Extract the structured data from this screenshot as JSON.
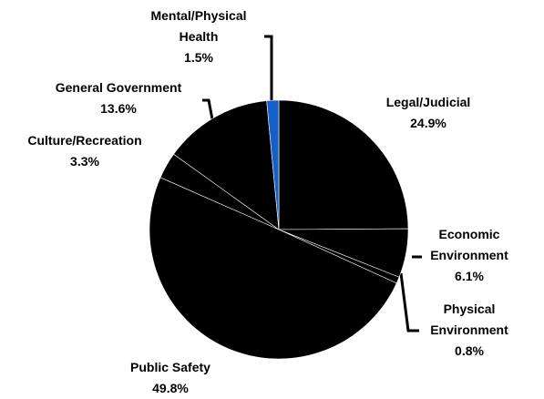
{
  "chart_data": {
    "type": "pie",
    "categories": [
      "Legal/Judicial",
      "Economic Environment",
      "Physical Environment",
      "Public Safety",
      "Culture/Recreation",
      "General Government",
      "Mental/Physical Health"
    ],
    "values": [
      24.9,
      6.1,
      0.8,
      49.8,
      3.3,
      13.6,
      1.5
    ],
    "value_labels": [
      "24.9%",
      "6.1%",
      "0.8%",
      "49.8%",
      "3.3%",
      "13.6%",
      "1.5%"
    ],
    "colors": [
      "#000000",
      "#000000",
      "#000000",
      "#000000",
      "#000000",
      "#000000",
      "#1560c8"
    ]
  }
}
